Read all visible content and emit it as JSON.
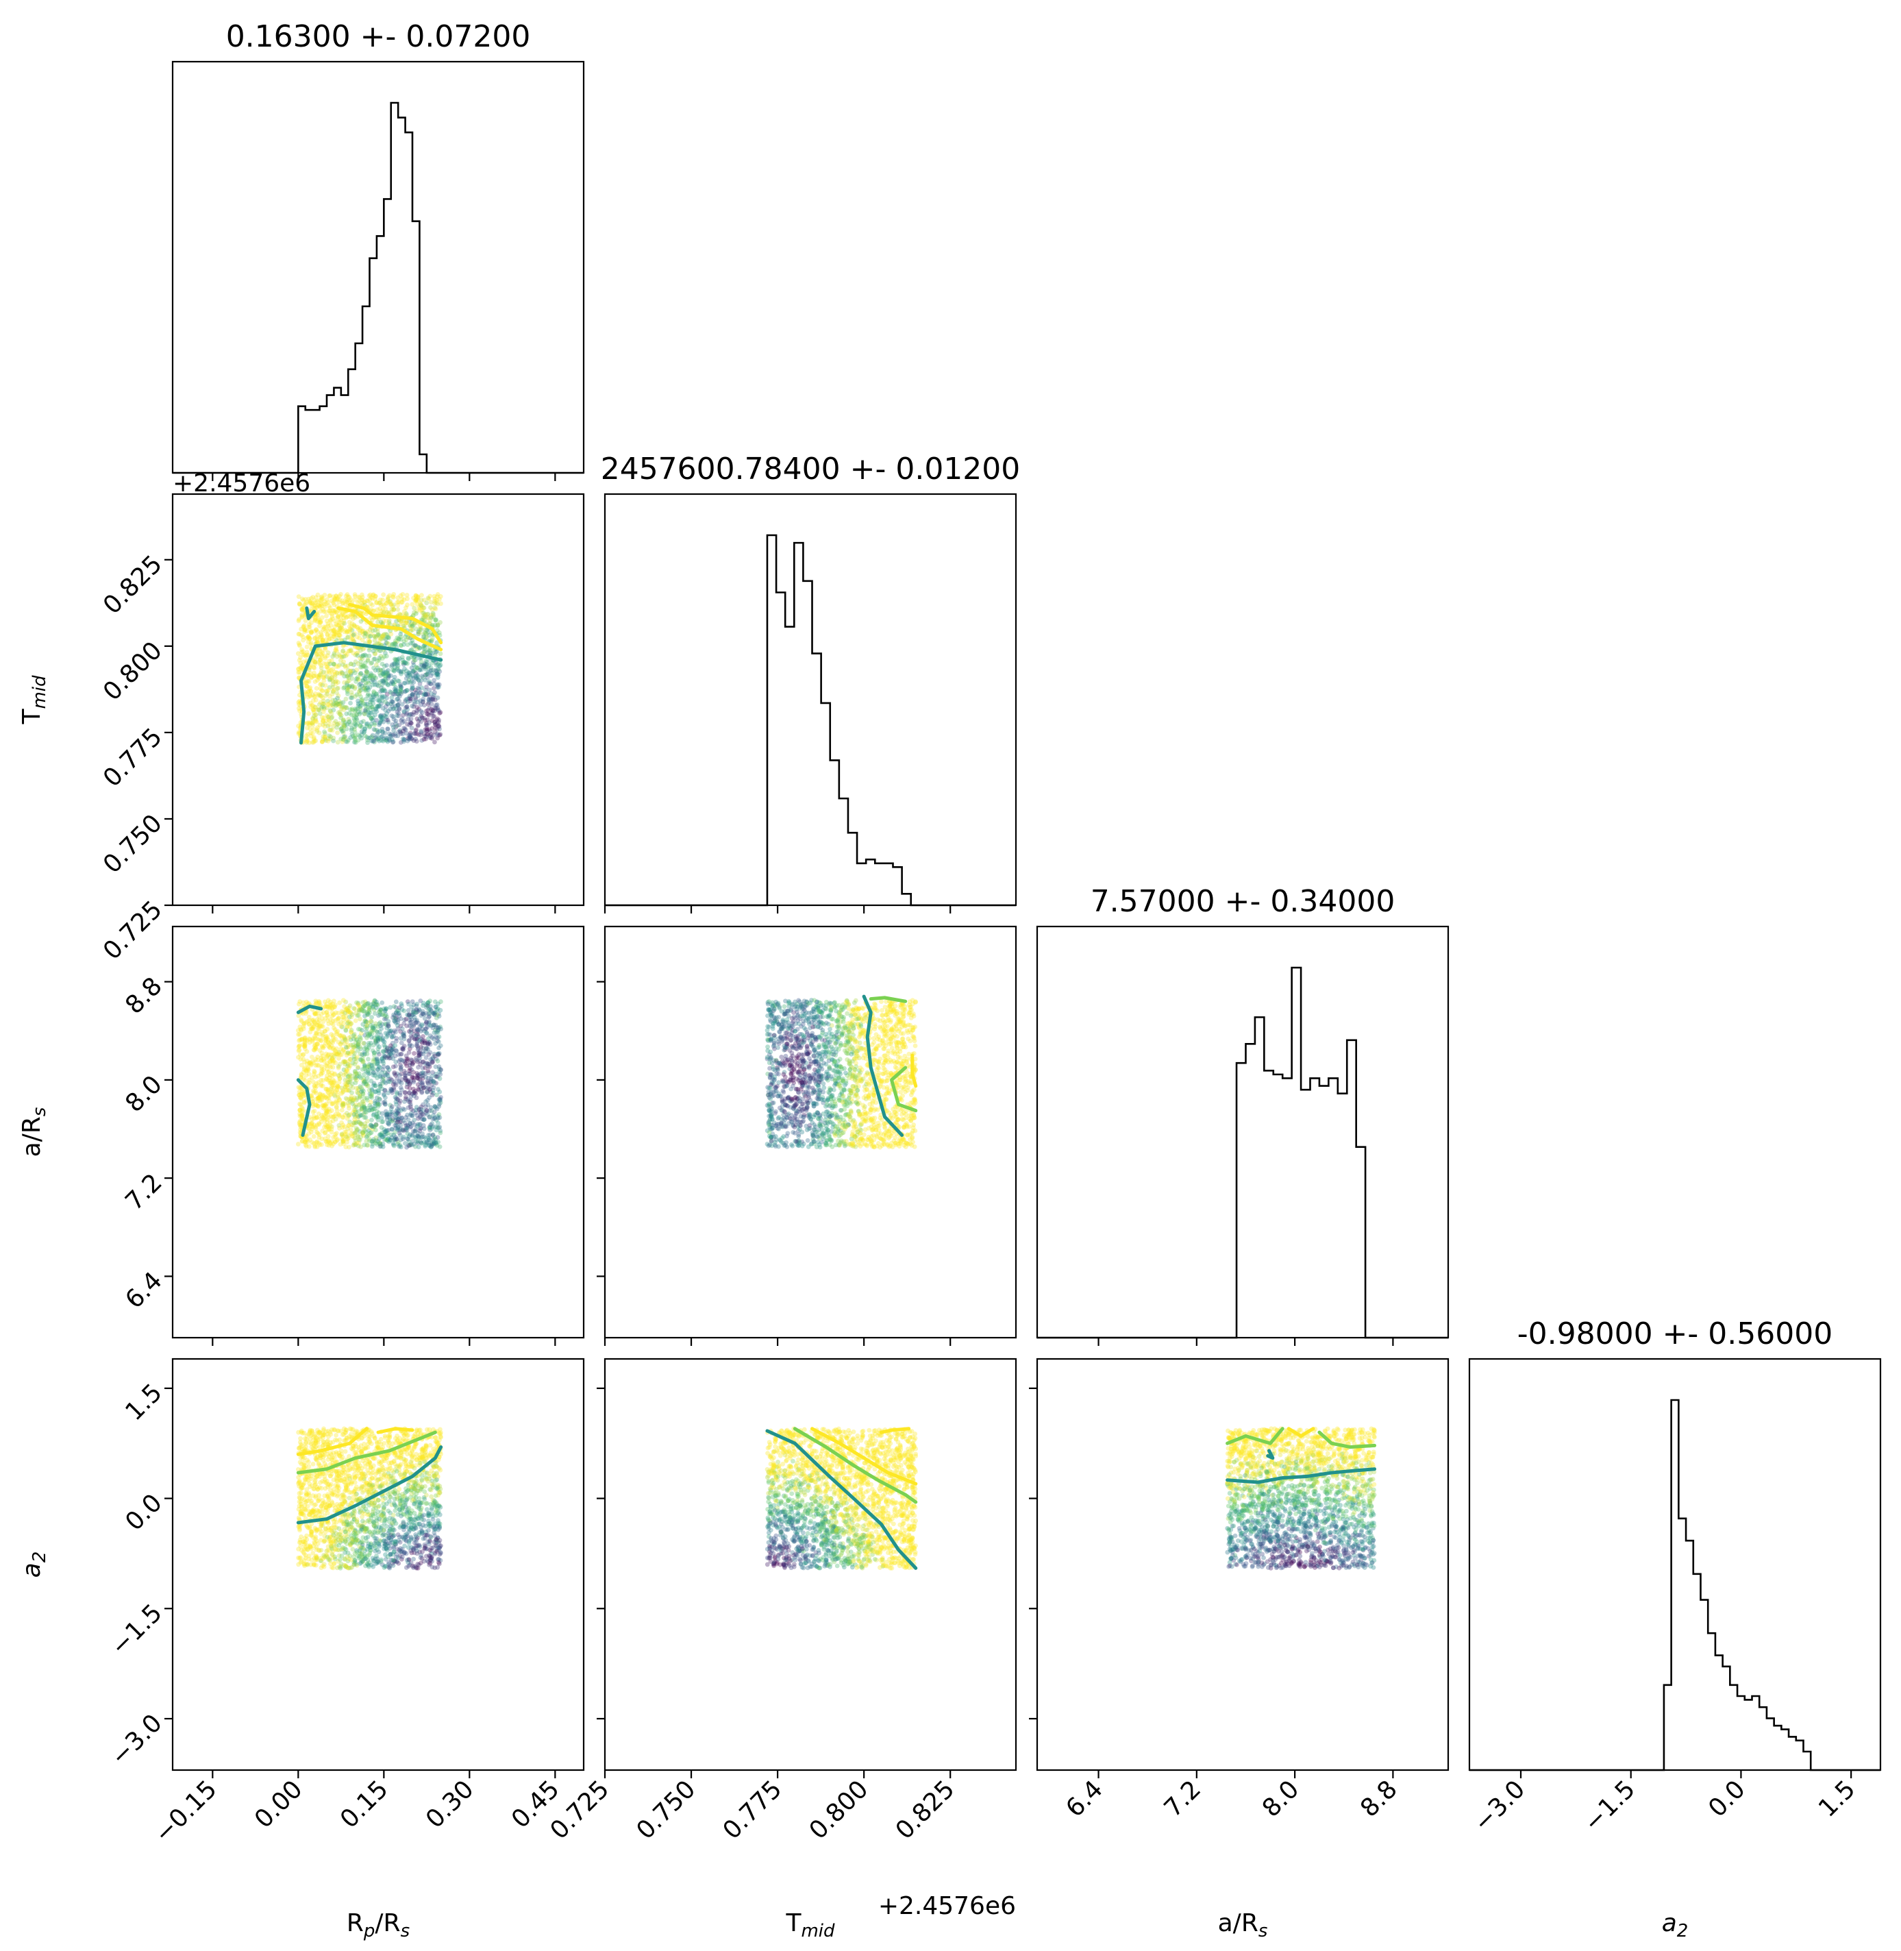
{
  "colors": {
    "frame": "#000000",
    "histogram": "#000000",
    "density_low": "#440154",
    "density_mid": "#21918c",
    "density_high": "#fde725",
    "colormap": [
      "#440154",
      "#3b528b",
      "#21918c",
      "#5ec962",
      "#fde725"
    ]
  },
  "chart_data": {
    "type": "corner",
    "plot_kind": "histogram diagonal with scatter + contour off-diagonal",
    "grid": false,
    "parameters": [
      {
        "key": "rp",
        "label_main": "R",
        "label_sub": "p",
        "label_tail": "/R",
        "label_tail_sub": "s",
        "title": "0.16300 +- 0.07200",
        "offset_text": "",
        "range": [
          -0.22,
          0.5
        ],
        "ticks": [
          "−0.15",
          "0.00",
          "0.15",
          "0.30",
          "0.45"
        ],
        "tick_values": [
          -0.15,
          0.0,
          0.15,
          0.3,
          0.45
        ],
        "sample_range": [
          0.0,
          0.25
        ],
        "hist_bins": [
          0.0,
          0.0125,
          0.025,
          0.0375,
          0.05,
          0.0625,
          0.075,
          0.0875,
          0.1,
          0.1125,
          0.125,
          0.1375,
          0.15,
          0.1625,
          0.175,
          0.1875,
          0.2,
          0.2125,
          0.225,
          0.2375,
          0.25
        ],
        "hist_counts": [
          0.18,
          0.17,
          0.17,
          0.18,
          0.21,
          0.23,
          0.21,
          0.28,
          0.35,
          0.45,
          0.58,
          0.64,
          0.74,
          1.0,
          0.96,
          0.92,
          0.68,
          0.05,
          0.0,
          0.0
        ]
      },
      {
        "key": "tmid",
        "label_main": "T",
        "label_sub": "mid",
        "label_tail": "",
        "label_tail_sub": "",
        "title": "2457600.78400 +- 0.01200",
        "offset_text": "+2.4576e6",
        "range": [
          0.725,
          0.844
        ],
        "ticks": [
          "0.725",
          "0.750",
          "0.775",
          "0.800",
          "0.825"
        ],
        "tick_values": [
          0.725,
          0.75,
          0.775,
          0.8,
          0.825
        ],
        "sample_range": [
          0.772,
          0.815
        ],
        "hist_bins": [
          0.772,
          0.7746,
          0.7772,
          0.7798,
          0.7824,
          0.785,
          0.7876,
          0.7902,
          0.7928,
          0.7954,
          0.798,
          0.8006,
          0.8032,
          0.8058,
          0.8084,
          0.811,
          0.8136
        ],
        "hist_counts": [
          0.97,
          0.82,
          0.73,
          0.95,
          0.85,
          0.66,
          0.53,
          0.38,
          0.28,
          0.19,
          0.11,
          0.12,
          0.11,
          0.11,
          0.1,
          0.03
        ]
      },
      {
        "key": "ars",
        "label_main": "a/R",
        "label_sub": "s",
        "label_tail": "",
        "label_tail_sub": "",
        "title": "7.57000 +- 0.34000",
        "offset_text": "",
        "range": [
          5.9,
          9.25
        ],
        "ticks": [
          "6.4",
          "7.2",
          "8.0",
          "8.8"
        ],
        "tick_values": [
          6.4,
          7.2,
          8.0,
          8.8
        ],
        "sample_range": [
          7.45,
          8.65
        ],
        "hist_bins": [
          7.45,
          7.525,
          7.6,
          7.675,
          7.75,
          7.825,
          7.9,
          7.975,
          8.05,
          8.125,
          8.2,
          8.275,
          8.35,
          8.425,
          8.5,
          8.575,
          8.65
        ],
        "hist_counts": [
          0.0,
          0.72,
          0.77,
          0.84,
          0.7,
          0.69,
          0.68,
          0.97,
          0.65,
          0.68,
          0.66,
          0.68,
          0.64,
          0.78,
          0.5,
          0.0
        ]
      },
      {
        "key": "a2",
        "label_main": "a",
        "label_sub": "2",
        "label_tail": "",
        "label_tail_sub": "",
        "label_italic": true,
        "title": "-0.98000 +- 0.56000",
        "offset_text": "",
        "range": [
          -3.7,
          1.9
        ],
        "ticks": [
          "−3.0",
          "−1.5",
          "0.0",
          "1.5"
        ],
        "tick_values": [
          -3.0,
          -1.5,
          0.0,
          1.5
        ],
        "sample_range": [
          -0.95,
          0.95
        ],
        "hist_bins": [
          -1.15,
          -1.05,
          -0.95,
          -0.85,
          -0.75,
          -0.65,
          -0.55,
          -0.45,
          -0.35,
          -0.25,
          -0.15,
          -0.05,
          0.05,
          0.15,
          0.25,
          0.35,
          0.45,
          0.55,
          0.65,
          0.75,
          0.85,
          0.95
        ],
        "hist_counts": [
          0.0,
          0.23,
          1.0,
          0.68,
          0.62,
          0.53,
          0.46,
          0.37,
          0.31,
          0.28,
          0.23,
          0.2,
          0.19,
          0.2,
          0.17,
          0.14,
          0.12,
          0.11,
          0.09,
          0.08,
          0.05
        ]
      }
    ],
    "pairs": [
      {
        "row": 1,
        "col": 0,
        "density_center": [
          0.23,
          0.778
        ],
        "density_spread": [
          0.08,
          0.014
        ],
        "contours": [
          {
            "level": "mid",
            "points": [
              [
                0.005,
                0.772
              ],
              [
                0.01,
                0.781
              ],
              [
                0.005,
                0.79
              ],
              [
                0.03,
                0.8
              ],
              [
                0.08,
                0.801
              ],
              [
                0.17,
                0.799
              ],
              [
                0.25,
                0.796
              ]
            ]
          },
          {
            "level": "mid",
            "points": [
              [
                0.015,
                0.811
              ],
              [
                0.018,
                0.808
              ],
              [
                0.028,
                0.81
              ]
            ]
          },
          {
            "level": "high",
            "points": [
              [
                0.07,
                0.811
              ],
              [
                0.1,
                0.81
              ],
              [
                0.13,
                0.806
              ],
              [
                0.18,
                0.805
              ],
              [
                0.21,
                0.802
              ],
              [
                0.25,
                0.799
              ]
            ]
          },
          {
            "level": "high",
            "points": [
              [
                0.09,
                0.812
              ],
              [
                0.115,
                0.811
              ],
              [
                0.13,
                0.809
              ],
              [
                0.2,
                0.808
              ],
              [
                0.235,
                0.805
              ],
              [
                0.25,
                0.801
              ]
            ]
          }
        ]
      },
      {
        "row": 2,
        "col": 0,
        "density_center": [
          0.2,
          8.05
        ],
        "density_spread": [
          0.05,
          0.6
        ],
        "contours": [
          {
            "level": "mid",
            "points": [
              [
                0.0,
                8.55
              ],
              [
                0.02,
                8.6
              ],
              [
                0.04,
                8.58
              ]
            ]
          },
          {
            "level": "mid",
            "points": [
              [
                0.0,
                8.0
              ],
              [
                0.015,
                7.93
              ],
              [
                0.02,
                7.8
              ],
              [
                0.008,
                7.55
              ]
            ]
          }
        ]
      },
      {
        "row": 3,
        "col": 0,
        "density_center": [
          0.22,
          -0.95
        ],
        "density_spread": [
          0.07,
          0.55
        ],
        "contours": [
          {
            "level": "mid",
            "points": [
              [
                0.0,
                -0.33
              ],
              [
                0.05,
                -0.28
              ],
              [
                0.1,
                -0.1
              ],
              [
                0.15,
                0.1
              ],
              [
                0.2,
                0.3
              ],
              [
                0.24,
                0.55
              ],
              [
                0.25,
                0.7
              ]
            ]
          },
          {
            "level": "mid-high",
            "points": [
              [
                0.0,
                0.35
              ],
              [
                0.05,
                0.4
              ],
              [
                0.1,
                0.55
              ],
              [
                0.16,
                0.65
              ],
              [
                0.24,
                0.9
              ]
            ]
          },
          {
            "level": "high",
            "points": [
              [
                0.0,
                0.6
              ],
              [
                0.04,
                0.65
              ],
              [
                0.09,
                0.75
              ],
              [
                0.12,
                0.95
              ]
            ]
          },
          {
            "level": "high",
            "points": [
              [
                0.14,
                0.9
              ],
              [
                0.17,
                0.95
              ],
              [
                0.2,
                0.93
              ]
            ]
          }
        ]
      },
      {
        "row": 2,
        "col": 1,
        "density_center": [
          0.78,
          8.05
        ],
        "density_spread": [
          0.008,
          0.6
        ],
        "contours": [
          {
            "level": "mid",
            "points": [
              [
                0.8,
                8.68
              ],
              [
                0.802,
                8.55
              ],
              [
                0.801,
                8.35
              ],
              [
                0.802,
                8.1
              ],
              [
                0.804,
                7.9
              ],
              [
                0.806,
                7.7
              ],
              [
                0.811,
                7.55
              ]
            ]
          },
          {
            "level": "mid-high",
            "points": [
              [
                0.802,
                8.66
              ],
              [
                0.806,
                8.67
              ],
              [
                0.812,
                8.64
              ]
            ]
          },
          {
            "level": "mid-high",
            "points": [
              [
                0.812,
                8.1
              ],
              [
                0.808,
                8.0
              ],
              [
                0.81,
                7.8
              ],
              [
                0.815,
                7.75
              ]
            ]
          },
          {
            "level": "high",
            "points": [
              [
                0.814,
                8.2
              ],
              [
                0.814,
                8.05
              ],
              [
                0.815,
                7.95
              ]
            ]
          }
        ]
      },
      {
        "row": 3,
        "col": 1,
        "density_center": [
          0.774,
          -0.95
        ],
        "density_spread": [
          0.012,
          0.55
        ],
        "contours": [
          {
            "level": "mid",
            "points": [
              [
                0.772,
                0.92
              ],
              [
                0.78,
                0.75
              ],
              [
                0.79,
                0.3
              ],
              [
                0.797,
                0.0
              ],
              [
                0.805,
                -0.35
              ],
              [
                0.81,
                -0.7
              ],
              [
                0.815,
                -0.95
              ]
            ]
          },
          {
            "level": "mid-high",
            "points": [
              [
                0.78,
                0.95
              ],
              [
                0.789,
                0.7
              ],
              [
                0.797,
                0.45
              ],
              [
                0.804,
                0.25
              ],
              [
                0.812,
                0.05
              ],
              [
                0.815,
                -0.05
              ]
            ]
          },
          {
            "level": "high",
            "points": [
              [
                0.785,
                0.95
              ],
              [
                0.793,
                0.75
              ],
              [
                0.8,
                0.55
              ],
              [
                0.807,
                0.35
              ],
              [
                0.815,
                0.2
              ]
            ]
          },
          {
            "level": "high",
            "points": [
              [
                0.805,
                0.9
              ],
              [
                0.808,
                0.93
              ],
              [
                0.813,
                0.95
              ]
            ]
          }
        ]
      },
      {
        "row": 3,
        "col": 2,
        "density_center": [
          8.05,
          -0.95
        ],
        "density_spread": [
          0.6,
          0.6
        ],
        "contours": [
          {
            "level": "mid",
            "points": [
              [
                7.45,
                0.25
              ],
              [
                7.7,
                0.22
              ],
              [
                7.9,
                0.28
              ],
              [
                8.1,
                0.3
              ],
              [
                8.3,
                0.35
              ],
              [
                8.5,
                0.38
              ],
              [
                8.65,
                0.4
              ]
            ]
          },
          {
            "level": "mid-high",
            "points": [
              [
                7.45,
                0.75
              ],
              [
                7.6,
                0.85
              ],
              [
                7.8,
                0.75
              ],
              [
                7.9,
                0.95
              ]
            ]
          },
          {
            "level": "mid-high",
            "points": [
              [
                8.2,
                0.9
              ],
              [
                8.3,
                0.75
              ],
              [
                8.45,
                0.7
              ],
              [
                8.65,
                0.72
              ]
            ]
          },
          {
            "level": "high",
            "points": [
              [
                7.95,
                0.95
              ],
              [
                8.05,
                0.85
              ],
              [
                8.15,
                0.95
              ]
            ]
          },
          {
            "level": "mid",
            "points": [
              [
                7.78,
                0.58
              ],
              [
                7.82,
                0.55
              ],
              [
                7.79,
                0.65
              ]
            ]
          }
        ]
      }
    ]
  }
}
